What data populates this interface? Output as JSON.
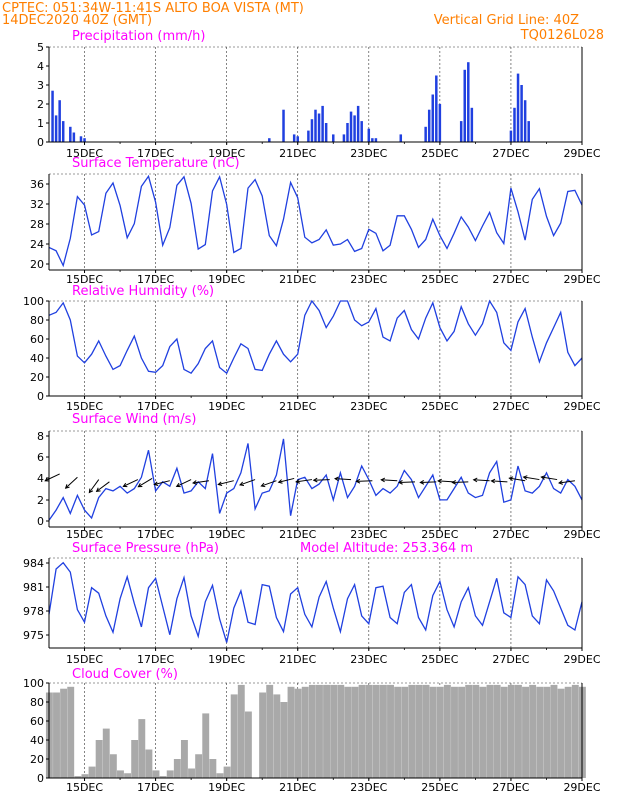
{
  "header": {
    "line1": "CPTEC:   051:34W-11:41S   ALTO BOA VISTA (MT)",
    "line1_right": "Vertical Grid Line: 40Z",
    "line2": "14DEC2020 40Z (GMT)",
    "line2_right": "TQ0126L028"
  },
  "colors": {
    "header": "#ff7f00",
    "title": "#ff00ff",
    "series": "#2040e0",
    "cloud": "#a9a9a9",
    "arrow": "#000000"
  },
  "x_ticks": [
    "15DEC",
    "17DEC",
    "19DEC",
    "21DEC",
    "23DEC",
    "25DEC",
    "27DEC",
    "29DEC"
  ],
  "chart_data": [
    {
      "type": "bar",
      "title": "Precipitation (mm/h)",
      "ylim": [
        0,
        5
      ],
      "yticks": [
        "0",
        "1",
        "2",
        "3",
        "4",
        "5"
      ],
      "grid": true,
      "points": [
        [
          14.1,
          2.7
        ],
        [
          14.2,
          1.4
        ],
        [
          14.3,
          2.2
        ],
        [
          14.4,
          1.1
        ],
        [
          14.6,
          0.8
        ],
        [
          14.7,
          0.5
        ],
        [
          14.9,
          0.3
        ],
        [
          15.0,
          0.2
        ],
        [
          20.2,
          0.2
        ],
        [
          20.6,
          1.7
        ],
        [
          20.9,
          0.4
        ],
        [
          21.0,
          0.3
        ],
        [
          21.3,
          0.6
        ],
        [
          21.4,
          1.2
        ],
        [
          21.5,
          1.7
        ],
        [
          21.6,
          1.5
        ],
        [
          21.7,
          1.9
        ],
        [
          21.8,
          1.0
        ],
        [
          22.0,
          0.4
        ],
        [
          22.3,
          0.4
        ],
        [
          22.4,
          1.0
        ],
        [
          22.5,
          1.6
        ],
        [
          22.6,
          1.4
        ],
        [
          22.7,
          1.9
        ],
        [
          22.8,
          1.1
        ],
        [
          23.0,
          0.7
        ],
        [
          23.1,
          0.2
        ],
        [
          23.2,
          0.2
        ],
        [
          23.9,
          0.4
        ],
        [
          24.6,
          0.8
        ],
        [
          24.7,
          1.7
        ],
        [
          24.8,
          2.5
        ],
        [
          24.9,
          3.5
        ],
        [
          25.0,
          2.0
        ],
        [
          25.6,
          1.1
        ],
        [
          25.7,
          3.8
        ],
        [
          25.8,
          4.2
        ],
        [
          25.9,
          1.8
        ],
        [
          27.0,
          0.6
        ],
        [
          27.1,
          1.8
        ],
        [
          27.2,
          3.6
        ],
        [
          27.3,
          3.0
        ],
        [
          27.4,
          2.2
        ],
        [
          27.5,
          1.1
        ]
      ]
    },
    {
      "type": "line",
      "title": "Surface Temperature (nC)",
      "ylim": [
        20,
        37
      ],
      "yticks": [
        "20",
        "24",
        "28",
        "32",
        "36"
      ],
      "grid": true,
      "x": [
        14,
        14.2,
        14.4,
        14.6,
        14.8,
        15,
        15.2,
        15.4,
        15.6,
        15.8,
        16,
        16.2,
        16.4,
        16.6,
        16.8,
        17,
        17.2,
        17.4,
        17.6,
        17.8,
        18,
        18.2,
        18.4,
        18.6,
        18.8,
        19,
        19.2,
        19.4,
        19.6,
        19.8,
        20,
        20.2,
        20.4,
        20.6,
        20.8,
        21,
        21.2,
        21.4,
        21.6,
        21.8,
        22,
        22.2,
        22.4,
        22.6,
        22.8,
        23,
        23.2,
        23.4,
        23.6,
        23.8,
        24,
        24.2,
        24.4,
        24.6,
        24.8,
        25,
        25.2,
        25.4,
        25.6,
        25.8,
        26,
        26.2,
        26.4,
        26.6,
        26.8,
        27,
        27.2,
        27.4,
        27.6,
        27.8,
        28,
        28.2,
        28.4,
        28.6,
        28.8,
        29
      ],
      "y": [
        24,
        23.4,
        20.8,
        25.6,
        33,
        31.5,
        26.2,
        26.8,
        33.6,
        35.4,
        31.4,
        25.7,
        28.2,
        34.8,
        36.6,
        32,
        24.4,
        27.5,
        35,
        36.5,
        31.8,
        23.7,
        24.5,
        34,
        36.5,
        31.6,
        23.1,
        23.8,
        34.5,
        36,
        33.1,
        26.1,
        24.3,
        29,
        35.5,
        32.8,
        25.8,
        24.8,
        25.4,
        27.1,
        24.4,
        24.6,
        25.4,
        23.3,
        23.8,
        27.2,
        26.5,
        23.4,
        24.4,
        29.6,
        29.6,
        27.2,
        24,
        25.4,
        29,
        26.1,
        23.8,
        26.5,
        29.4,
        27.6,
        25.2,
        27.8,
        30.2,
        26.6,
        24.7,
        34.5,
        30.3,
        25.3,
        32.5,
        34.4,
        29.5,
        26.1,
        28.3,
        33.9,
        34.1,
        31.5
      ]
    },
    {
      "type": "line",
      "title": "Relative Humidity (%)",
      "ylim": [
        0,
        100
      ],
      "yticks": [
        "0",
        "20",
        "40",
        "60",
        "80",
        "100"
      ],
      "grid": true,
      "x": [
        14,
        14.2,
        14.4,
        14.6,
        14.8,
        15,
        15.2,
        15.4,
        15.6,
        15.8,
        16,
        16.2,
        16.4,
        16.6,
        16.8,
        17,
        17.2,
        17.4,
        17.6,
        17.8,
        18,
        18.2,
        18.4,
        18.6,
        18.8,
        19,
        19.2,
        19.4,
        19.6,
        19.8,
        20,
        20.2,
        20.4,
        20.6,
        20.8,
        21,
        21.2,
        21.4,
        21.6,
        21.8,
        22,
        22.2,
        22.4,
        22.6,
        22.8,
        23,
        23.2,
        23.4,
        23.6,
        23.8,
        24,
        24.2,
        24.4,
        24.6,
        24.8,
        25,
        25.2,
        25.4,
        25.6,
        25.8,
        26,
        26.2,
        26.4,
        26.6,
        26.8,
        27,
        27.2,
        27.4,
        27.6,
        27.8,
        28,
        28.2,
        28.4,
        28.6,
        28.8,
        29
      ],
      "y": [
        85,
        88,
        98,
        80,
        42,
        35,
        44,
        58,
        42,
        28,
        32,
        48,
        63,
        40,
        26,
        25,
        32,
        52,
        60,
        28,
        24,
        34,
        50,
        58,
        30,
        24,
        40,
        55,
        50,
        28,
        27,
        44,
        58,
        44,
        36,
        44,
        85,
        100,
        90,
        72,
        84,
        100,
        100,
        80,
        74,
        78,
        92,
        62,
        58,
        82,
        90,
        70,
        60,
        82,
        98,
        72,
        58,
        68,
        94,
        76,
        64,
        76,
        100,
        88,
        56,
        48,
        78,
        92,
        62,
        36,
        56,
        72,
        88,
        46,
        32,
        40
      ]
    },
    {
      "type": "line",
      "title": "Surface Wind (m/s)",
      "ylim": [
        0,
        8.5
      ],
      "yticks": [
        "0",
        "2",
        "4",
        "6",
        "8"
      ],
      "grid": true,
      "x": [
        14,
        14.2,
        14.4,
        14.6,
        14.8,
        15,
        15.2,
        15.4,
        15.6,
        15.8,
        16,
        16.2,
        16.4,
        16.6,
        16.8,
        17,
        17.2,
        17.4,
        17.6,
        17.8,
        18,
        18.2,
        18.4,
        18.6,
        18.8,
        19,
        19.2,
        19.4,
        19.6,
        19.8,
        20,
        20.2,
        20.4,
        20.6,
        20.8,
        21,
        21.2,
        21.4,
        21.6,
        21.8,
        22,
        22.2,
        22.4,
        22.6,
        22.8,
        23,
        23.2,
        23.4,
        23.6,
        23.8,
        24,
        24.2,
        24.4,
        24.6,
        24.8,
        25,
        25.2,
        25.4,
        25.6,
        25.8,
        26,
        26.2,
        26.4,
        26.6,
        26.8,
        27,
        27.2,
        27.4,
        27.6,
        27.8,
        28,
        28.2,
        28.4,
        28.6,
        28.8,
        29
      ],
      "y": [
        0.6,
        1.5,
        2.6,
        1.2,
        2.8,
        1.5,
        0.8,
        2.6,
        3.4,
        3.2,
        3.6,
        3.0,
        3.4,
        4.4,
        6.8,
        3.2,
        4.0,
        3.6,
        5.2,
        3.0,
        3.2,
        4.0,
        3.4,
        6.5,
        1.2,
        3.0,
        3.4,
        4.8,
        7.4,
        1.6,
        3.0,
        3.2,
        4.6,
        7.8,
        1.0,
        4.2,
        4.4,
        3.4,
        3.8,
        4.6,
        2.4,
        4.8,
        2.6,
        3.6,
        5.4,
        4.2,
        2.8,
        3.4,
        3.0,
        3.6,
        5.0,
        4.2,
        2.6,
        3.6,
        4.6,
        2.4,
        2.4,
        3.4,
        4.4,
        3.0,
        2.6,
        2.8,
        4.8,
        5.8,
        2.2,
        2.4,
        5.4,
        3.2,
        3.0,
        3.6,
        4.8,
        3.4,
        3.0,
        4.2,
        3.6,
        2.4
      ],
      "vectors": [
        [
          14.3,
          4.7,
          1.5
        ],
        [
          14.8,
          4.4,
          1.2
        ],
        [
          15.4,
          4.2,
          1.0
        ],
        [
          15.7,
          4.0,
          1.3
        ],
        [
          16.5,
          4.2,
          1.5
        ],
        [
          16.9,
          4.3,
          1.4
        ],
        [
          17.4,
          4.1,
          1.7
        ],
        [
          18.0,
          4.2,
          1.5
        ],
        [
          18.5,
          4.1,
          1.8
        ],
        [
          19.2,
          4.1,
          1.7
        ],
        [
          19.8,
          4.2,
          1.6
        ],
        [
          20.4,
          4.1,
          1.6
        ],
        [
          20.9,
          4.3,
          1.7
        ],
        [
          21.4,
          4.2,
          1.8
        ],
        [
          21.9,
          4.2,
          1.9
        ],
        [
          22.5,
          4.2,
          2.0
        ],
        [
          23.1,
          4.1,
          1.9
        ],
        [
          23.8,
          4.1,
          2.0
        ],
        [
          24.3,
          4.0,
          1.9
        ],
        [
          24.9,
          4.0,
          1.9
        ],
        [
          25.4,
          4.0,
          2.0
        ],
        [
          25.8,
          4.0,
          1.9
        ],
        [
          26.4,
          4.1,
          2.0
        ],
        [
          26.9,
          4.0,
          2.0
        ],
        [
          27.4,
          4.1,
          2.1
        ],
        [
          27.8,
          4.2,
          2.1
        ],
        [
          28.3,
          4.2,
          2.1
        ],
        [
          28.8,
          4.1,
          1.8
        ]
      ]
    },
    {
      "type": "line",
      "title": "Surface Pressure (hPa)",
      "annotation": "Model Altitude: 253.364 m",
      "ylim": [
        973.5,
        985
      ],
      "yticks": [
        "975",
        "978",
        "981",
        "984"
      ],
      "grid": true,
      "x": [
        14,
        14.2,
        14.4,
        14.6,
        14.8,
        15,
        15.2,
        15.4,
        15.6,
        15.8,
        16,
        16.2,
        16.4,
        16.6,
        16.8,
        17,
        17.2,
        17.4,
        17.6,
        17.8,
        18,
        18.2,
        18.4,
        18.6,
        18.8,
        19,
        19.2,
        19.4,
        19.6,
        19.8,
        20,
        20.2,
        20.4,
        20.6,
        20.8,
        21,
        21.2,
        21.4,
        21.6,
        21.8,
        22,
        22.2,
        22.4,
        22.6,
        22.8,
        23,
        23.2,
        23.4,
        23.6,
        23.8,
        24,
        24.2,
        24.4,
        24.6,
        24.8,
        25,
        25.2,
        25.4,
        25.6,
        25.8,
        26,
        26.2,
        26.4,
        26.6,
        26.8,
        27,
        27.2,
        27.4,
        27.6,
        27.8,
        28,
        28.2,
        28.4,
        28.6,
        28.8,
        29
      ],
      "y": [
        977.8,
        983.6,
        984.4,
        983.2,
        978.4,
        976.8,
        981.2,
        980.5,
        977.6,
        975.5,
        979.8,
        982.6,
        979.2,
        976.2,
        981.2,
        982.4,
        978.8,
        975.2,
        979.8,
        982.5,
        977.6,
        975.0,
        979.4,
        981.5,
        977.2,
        974.2,
        978.6,
        980.8,
        976.8,
        976.5,
        981.6,
        981.4,
        977.4,
        975.6,
        980.4,
        981.2,
        977.8,
        976.2,
        980.0,
        982.0,
        978.6,
        975.6,
        979.8,
        981.6,
        977.6,
        976.6,
        981.2,
        981.4,
        977.4,
        976.6,
        980.6,
        981.6,
        977.4,
        975.8,
        980.2,
        982.0,
        978.4,
        976.2,
        979.4,
        981.2,
        977.6,
        976.4,
        979.4,
        982.4,
        978.0,
        977.4,
        982.6,
        981.6,
        977.6,
        976.6,
        982.2,
        980.8,
        978.6,
        976.4,
        975.8,
        979.4
      ]
    },
    {
      "type": "area",
      "title": "Cloud Cover (%)",
      "ylim": [
        0,
        100
      ],
      "yticks": [
        "0",
        "20",
        "40",
        "60",
        "80",
        "100"
      ],
      "grid": true,
      "x": [
        14,
        14.2,
        14.4,
        14.6,
        14.8,
        15,
        15.2,
        15.4,
        15.6,
        15.8,
        16,
        16.2,
        16.4,
        16.6,
        16.8,
        17,
        17.2,
        17.4,
        17.6,
        17.8,
        18,
        18.2,
        18.4,
        18.6,
        18.8,
        19,
        19.2,
        19.4,
        19.6,
        19.8,
        20,
        20.2,
        20.4,
        20.6,
        20.8,
        21,
        21.2,
        21.4,
        21.6,
        21.8,
        22,
        22.2,
        22.4,
        22.6,
        22.8,
        23,
        23.2,
        23.4,
        23.6,
        23.8,
        24,
        24.2,
        24.4,
        24.6,
        24.8,
        25,
        25.2,
        25.4,
        25.6,
        25.8,
        26,
        26.2,
        26.4,
        26.6,
        26.8,
        27,
        27.2,
        27.4,
        27.6,
        27.8,
        28,
        28.2,
        28.4,
        28.6,
        28.8,
        29
      ],
      "y": [
        90,
        90,
        94,
        96,
        2,
        4,
        12,
        40,
        52,
        25,
        8,
        5,
        40,
        62,
        30,
        8,
        2,
        8,
        20,
        40,
        10,
        25,
        68,
        20,
        5,
        12,
        88,
        98,
        70,
        0,
        90,
        98,
        88,
        80,
        96,
        94,
        96,
        98,
        98,
        98,
        98,
        98,
        96,
        96,
        98,
        98,
        98,
        98,
        98,
        96,
        96,
        98,
        98,
        98,
        96,
        96,
        98,
        96,
        96,
        98,
        98,
        96,
        98,
        98,
        96,
        98,
        98,
        96,
        98,
        96,
        96,
        98,
        94,
        96,
        98,
        96
      ]
    }
  ]
}
